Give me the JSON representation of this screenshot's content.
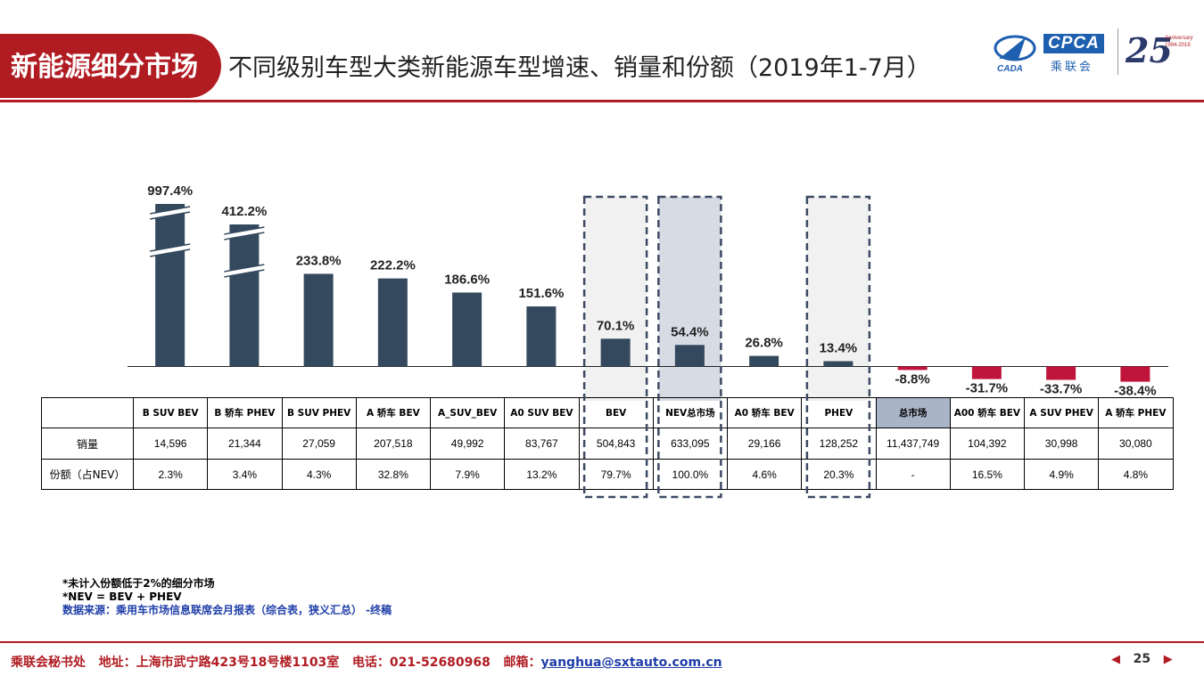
{
  "header": {
    "section_label": "新能源细分市场",
    "title": "不同级别车型大类新能源车型增速、销量和份额（2019年1-7月）",
    "logo_text": "CPCA",
    "logo_cn": "乘联会",
    "logo_small": "CADA",
    "anniversary_number": "25",
    "anniversary_line1": "Anniversary",
    "anniversary_line2": "1994-2019"
  },
  "colors": {
    "positive_bar": "#34495e",
    "negative_bar": "#c0143c",
    "brand_red": "#b01c22",
    "highlight_light": "#f1f1f1",
    "highlight_blue": "#d6dbe4",
    "total_cell": "#a9b4c7"
  },
  "chart_data": {
    "type": "bar",
    "categories": [
      "B SUV BEV",
      "B 轿车 PHEV",
      "B SUV PHEV",
      "A 轿车 BEV",
      "A_SUV_BEV",
      "A0 SUV BEV",
      "BEV",
      "NEV总市场",
      "A0 轿车 BEV",
      "PHEV",
      "总市场",
      "A00 轿车 BEV",
      "A SUV PHEV",
      "A 轿车 PHEV"
    ],
    "series": [
      {
        "values": [
          997.4,
          412.2,
          233.8,
          222.2,
          186.6,
          151.6,
          70.1,
          54.4,
          26.8,
          13.4,
          -8.8,
          -31.7,
          -33.7,
          -38.4
        ]
      }
    ],
    "value_labels": [
      "997.4%",
      "412.2%",
      "233.8%",
      "222.2%",
      "186.6%",
      "151.6%",
      "70.1%",
      "54.4%",
      "26.8%",
      "13.4%",
      "-8.8%",
      "-31.7%",
      "-33.7%",
      "-38.4%"
    ],
    "axis_breaks": [
      "B SUV BEV",
      "B 轿车 PHEV"
    ],
    "highlighted_categories": [
      "BEV",
      "NEV总市场",
      "PHEV"
    ],
    "title": "",
    "xlabel": "",
    "ylabel": ""
  },
  "table": {
    "headers": [
      "B SUV BEV",
      "B 轿车 PHEV",
      "B SUV PHEV",
      "A 轿车 BEV",
      "A_SUV_BEV",
      "A0 SUV BEV",
      "BEV",
      "NEV总市场",
      "A0 轿车 BEV",
      "PHEV",
      "总市场",
      "A00 轿车 BEV",
      "A SUV PHEV",
      "A 轿车 PHEV"
    ],
    "rows": [
      {
        "label": "销量",
        "values": [
          "14,596",
          "21,344",
          "27,059",
          "207,518",
          "49,992",
          "83,767",
          "504,843",
          "633,095",
          "29,166",
          "128,252",
          "11,437,749",
          "104,392",
          "30,998",
          "30,080"
        ]
      },
      {
        "label": "份额（占NEV）",
        "values": [
          "2.3%",
          "3.4%",
          "4.3%",
          "32.8%",
          "7.9%",
          "13.2%",
          "79.7%",
          "100.0%",
          "4.6%",
          "20.3%",
          "-",
          "16.5%",
          "4.9%",
          "4.8%"
        ]
      }
    ]
  },
  "notes": {
    "line1": "*未计入份额低于2%的细分市场",
    "line2": "*NEV = BEV + PHEV",
    "source": "数据来源：乘用车市场信息联席会月报表（综合表，狭义汇总） -终稿"
  },
  "footer": {
    "org": "乘联会秘书处",
    "address": "地址：上海市武宁路423号18号楼1103室",
    "phone": "电话：021-52680968",
    "email_label": "邮箱：",
    "email": "yanghua@sxtauto.com.cn",
    "page_number": "25"
  }
}
